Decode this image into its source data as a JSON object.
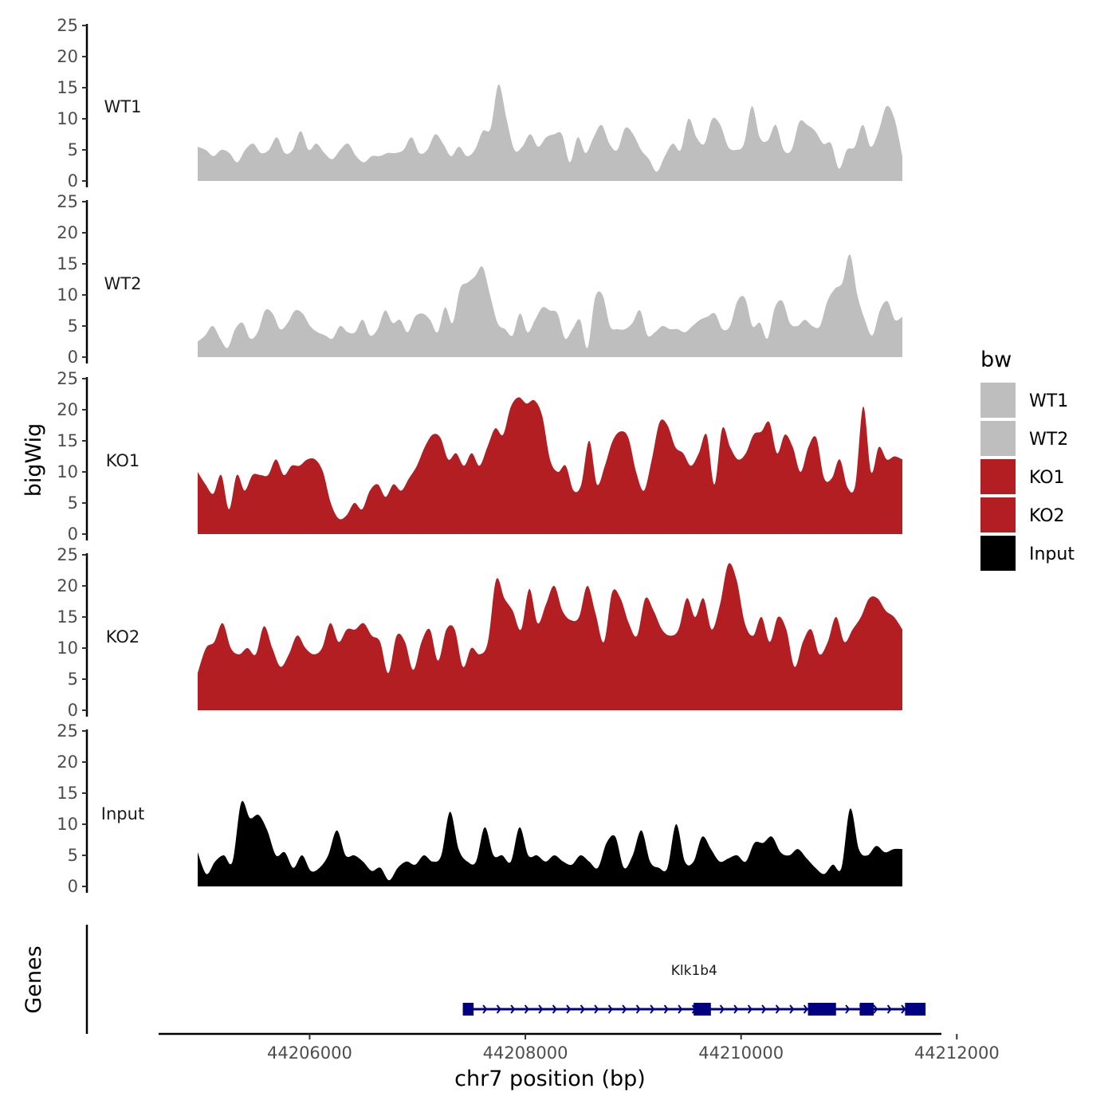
{
  "chart_data": {
    "type": "area",
    "region": {
      "chromosome": "chr7",
      "start": 44205500,
      "end": 44211750
    },
    "xlabel": "chr7 position (bp)",
    "ylabel": "bigWig",
    "xlim": [
      44204600,
      44211850
    ],
    "x_ticks": [
      {
        "value": 44206000,
        "label": "44206000"
      },
      {
        "value": 44208000,
        "label": "44208000"
      },
      {
        "value": 44210000,
        "label": "44210000"
      },
      {
        "value": 44212000,
        "label": "44212000"
      }
    ],
    "ylim": [
      0,
      25
    ],
    "y_ticks": [
      {
        "value": 0,
        "label": "0"
      },
      {
        "value": 5,
        "label": "5"
      },
      {
        "value": 10,
        "label": "10"
      },
      {
        "value": 15,
        "label": "15"
      },
      {
        "value": 20,
        "label": "20"
      },
      {
        "value": 25,
        "label": "25"
      }
    ],
    "legend": {
      "title": "bw",
      "position": "right",
      "entries": [
        {
          "label": "WT1",
          "color": "#bebebe"
        },
        {
          "label": "WT2",
          "color": "#bebebe"
        },
        {
          "label": "KO1",
          "color": "#b21e21"
        },
        {
          "label": "KO2",
          "color": "#b21e21"
        },
        {
          "label": "Input",
          "color": "#000000"
        }
      ]
    },
    "series": [
      {
        "name": "WT1",
        "color": "#bebebe",
        "values": [
          5.5,
          5,
          4,
          5,
          4.5,
          3,
          5,
          6,
          4.5,
          5,
          7,
          4.5,
          5,
          8,
          5,
          6,
          4.5,
          3.5,
          5,
          6,
          4,
          3,
          4,
          4,
          4.5,
          4.5,
          5,
          7,
          4.5,
          5,
          7.5,
          6,
          4,
          5.5,
          4,
          5,
          8,
          8.5,
          15.5,
          10,
          5,
          5.5,
          7.5,
          5.5,
          7,
          7.5,
          7.5,
          3,
          7,
          4.5,
          7,
          9,
          6,
          5,
          8.5,
          7.5,
          5,
          3.5,
          1.5,
          4,
          6,
          5,
          10,
          7,
          6,
          10,
          9,
          5.5,
          5,
          6,
          12,
          7,
          6.5,
          9,
          5,
          5,
          9.5,
          9,
          8,
          6,
          6,
          2,
          5,
          5.5,
          9,
          5.5,
          8,
          12,
          10,
          4
        ]
      },
      {
        "name": "WT2",
        "color": "#bebebe",
        "values": [
          2.5,
          3.5,
          5,
          3,
          1.5,
          4.5,
          5.5,
          3,
          4,
          7.5,
          7,
          4.5,
          5.5,
          7.5,
          7,
          5,
          4,
          3.5,
          3,
          5,
          4,
          4,
          6,
          3.5,
          4.5,
          7.5,
          5.5,
          6,
          4,
          6.5,
          7,
          6,
          4,
          8,
          5.5,
          11,
          12,
          13,
          14.5,
          10,
          5.5,
          4.5,
          3.5,
          7,
          4,
          6,
          8,
          7.5,
          7,
          3,
          4.5,
          6,
          1.5,
          9.5,
          10,
          5,
          4.5,
          4.5,
          5.5,
          7.5,
          3.5,
          4,
          5,
          4.5,
          4.5,
          4,
          5,
          6,
          6.5,
          7,
          4.5,
          5,
          9,
          9.5,
          5,
          5.5,
          3,
          8,
          9,
          5.5,
          5,
          6,
          5,
          5,
          9,
          11,
          12,
          16.5,
          10,
          6,
          3.5,
          7.5,
          9,
          6,
          6.5
        ]
      },
      {
        "name": "KO1",
        "color": "#b21e21",
        "values": [
          10,
          8,
          6.5,
          9.5,
          4,
          9.5,
          7,
          9.5,
          9.5,
          9.5,
          12,
          9.5,
          11,
          11,
          12,
          12,
          10,
          5,
          2.5,
          3,
          5,
          4,
          7,
          8,
          6,
          8,
          7,
          9,
          11,
          14,
          16,
          15.5,
          12,
          13,
          11,
          13,
          11,
          14,
          17,
          16,
          20.5,
          22,
          21,
          21.5,
          19,
          12,
          10,
          11,
          7,
          8,
          15,
          8,
          11,
          15,
          16.5,
          15.5,
          10,
          7,
          12,
          18,
          17.5,
          14,
          13,
          11,
          13,
          16,
          8,
          17,
          14,
          12,
          13,
          16,
          16.5,
          18,
          13,
          16,
          14,
          10,
          14,
          15.5,
          9,
          9,
          12,
          7.5,
          8,
          20.5,
          10,
          14,
          12,
          12.5,
          12
        ]
      },
      {
        "name": "KO2",
        "color": "#b21e21",
        "values": [
          6,
          10,
          11,
          14,
          10,
          9,
          10,
          9,
          13.5,
          10,
          7,
          9,
          12,
          10,
          9,
          10,
          14,
          11,
          13,
          13,
          14,
          12,
          11,
          6,
          12,
          11,
          6.5,
          11,
          13,
          8,
          13,
          13,
          7,
          10,
          9,
          11,
          21,
          18,
          16,
          13,
          19.5,
          14,
          17,
          20,
          16,
          14.5,
          15,
          20,
          15.5,
          11,
          19,
          18,
          14,
          12,
          18,
          16,
          13,
          12,
          13,
          18,
          15,
          18,
          13,
          17,
          23.5,
          21,
          14,
          12,
          15,
          11,
          15,
          13,
          7,
          11,
          13,
          9,
          11,
          15,
          11,
          13,
          15,
          18,
          18,
          16,
          15,
          13
        ]
      },
      {
        "name": "Input",
        "color": "#000000",
        "values": [
          5.5,
          2,
          4,
          5,
          4,
          13.5,
          11,
          11.5,
          9,
          5,
          5.5,
          3,
          5,
          2.5,
          3,
          5,
          9,
          5,
          5,
          4,
          2.5,
          3,
          1,
          3,
          4,
          3.5,
          5,
          4,
          5,
          12,
          6,
          4,
          4,
          9.5,
          5,
          5,
          4,
          9.5,
          5,
          5,
          4,
          5,
          4,
          3.5,
          5,
          4,
          3,
          7,
          8,
          3,
          5,
          9,
          4,
          3,
          3,
          10,
          4,
          4,
          8,
          6,
          4,
          4.5,
          5,
          4,
          7,
          7,
          8,
          5.5,
          5,
          6,
          4.5,
          3,
          2,
          3.5,
          3,
          12.5,
          6,
          5,
          6.5,
          5.5,
          6,
          6
        ]
      }
    ],
    "gene_track": {
      "ylabel": "Genes",
      "genes": [
        {
          "name": "Klk1b4",
          "start": 44207420,
          "end": 44211710,
          "strand": "+",
          "exons": [
            [
              44207420,
              44207520
            ],
            [
              44209560,
              44209720
            ],
            [
              44210620,
              44210880
            ],
            [
              44211100,
              44211230
            ],
            [
              44211520,
              44211710
            ]
          ],
          "color": "#000080"
        }
      ]
    }
  }
}
